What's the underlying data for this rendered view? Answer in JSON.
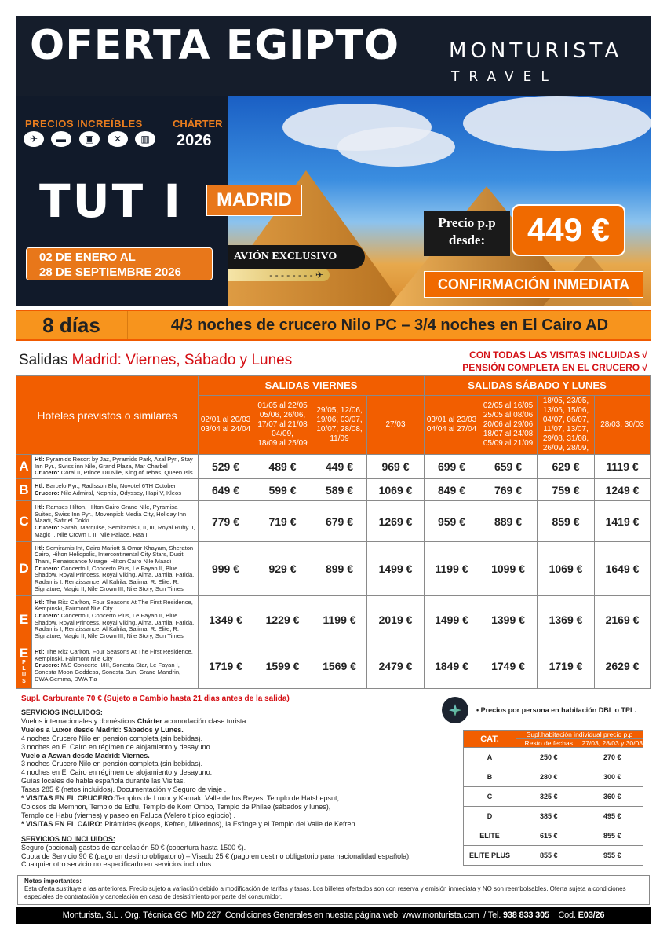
{
  "header": {
    "title": "OFERTA EGIPTO",
    "logo_main": "MONTURISTA",
    "logo_sub": "TRAVEL"
  },
  "hero": {
    "precios": "PRECIOS INCREÍBLES",
    "charter": "CHÁRTER",
    "year": "2026",
    "icons": [
      "plane-icon",
      "bed-icon",
      "bus-icon",
      "cutlery-icon",
      "luggage-icon"
    ],
    "program": "TUT I",
    "city": "MADRID",
    "dates_line1": "02 DE ENERO AL",
    "dates_line2": "28 DE SEPTIEMBRE 2026",
    "avion": "AVIÓN EXCLUSIVO",
    "price_label1": "Precio p.p",
    "price_label2": "desde:",
    "price": "449 €",
    "confirm": "CONFIRMACIÓN INMEDIATA"
  },
  "band": {
    "days": "8 días",
    "desc": "4/3 noches de crucero Nilo PC – 3/4 noches en El Cairo AD"
  },
  "salidas": {
    "prefix": "Salidas",
    "rest": "Madrid: Viernes, Sábado y Lunes",
    "incl1": "CON TODAS LAS VISITAS INCLUIDAS √",
    "incl2": "PENSIÓN COMPLETA EN EL CRUCERO √"
  },
  "table": {
    "hotels_header": "Hoteles previstos o similares",
    "group1": "SALIDAS VIERNES",
    "group2": "SALIDAS SÁBADO Y LUNES",
    "columns": [
      "02/01 al 20/03\n03/04 al 24/04",
      "01/05 al 22/05\n05/06, 26/06,\n17/07 al 21/08\n04/09,\n18/09 al 25/09",
      "29/05, 12/06,\n19/06, 03/07,\n10/07, 28/08,\n11/09",
      "27/03",
      "03/01 al 23/03\n04/04 al 27/04",
      "02/05 al 16/05\n25/05 al 08/06\n20/06 al 29/06\n18/07 al 24/08\n05/09 al 21/09",
      "18/05, 23/05,\n13/06, 15/06,\n04/07, 06/07,\n11/07, 13/07,\n29/08, 31/08,\n26/09, 28/09,",
      "28/03, 30/03"
    ],
    "rows": [
      {
        "cat": "A",
        "sub": "",
        "htl": "Pyramids Resort by Jaz, Pyramids Park, Azal Pyr., Stay Inn Pyr., Swiss inn Nile, Grand Plaza, Mar Charbel",
        "crucero": "Coral II, Prince Du Nile, King of Tebas, Queen Isis",
        "prices": [
          "529 €",
          "489 €",
          "449 €",
          "969 €",
          "699 €",
          "659 €",
          "629 €",
          "1119 €"
        ]
      },
      {
        "cat": "B",
        "sub": "",
        "htl": "Barcelo Pyr., Radisson Blu, Novotel 6TH October",
        "crucero": "Nile Admiral, Nephtis, Odyssey, Hapi V,  Kleos",
        "prices": [
          "649 €",
          "599 €",
          "589 €",
          "1069 €",
          "849 €",
          "769 €",
          "759 €",
          "1249 €"
        ]
      },
      {
        "cat": "C",
        "sub": "",
        "htl": "Ramses Hilton, Hilton Cairo Grand Nile, Pyramisa Suites, Swiss Inn Pyr., Movenpick Media City, Holiday Inn Maadi, Safir el Dokki",
        "crucero": "Sarah, Marquise, Semiramis I, II, III, Royal Ruby II, Magic I, Nile Crown I, II, Nile Palace, Raa I",
        "prices": [
          "779 €",
          "719 €",
          "679 €",
          "1269 €",
          "959 €",
          "889 €",
          "859 €",
          "1419 €"
        ]
      },
      {
        "cat": "D",
        "sub": "",
        "htl": "Semiramis Int, Cairo Mariott & Omar Khayam, Sheraton Cairo, Hilton Heliopolis, Intercontinental City Stars, Dusit Thani, Renaissance Mirage, Hilton Cairo Nile Maadi",
        "crucero": "Concerto I, Concerto Plus, Le Fayan II, Blue Shadow, Royal Princess, Royal Viking, Alma, Jamila, Farida, Radamis I, Renaissance, Al Kahila, Salima, R. Elite, R. Signature, Magic II, Nile Crown III, Nile Story, Sun Times",
        "prices": [
          "999 €",
          "929 €",
          "899 €",
          "1499 €",
          "1199 €",
          "1099 €",
          "1069 €",
          "1649 €"
        ]
      },
      {
        "cat": "E",
        "sub": "",
        "htl": "The Ritz Carlton, Four Seasons At The First Residence, Kempinski, Fairmont Nile City",
        "crucero": "Concerto I, Concerto Plus, Le Fayan II, Blue Shadow, Royal Princess, Royal Viking, Alma, Jamila, Farida, Radamis I, Renaissance, Al Kahila, Salima, R. Elite, R. Signature, Magic II, Nile Crown III, Nile Story, Sun Times",
        "prices": [
          "1349 €",
          "1229 €",
          "1199 €",
          "2019 €",
          "1499 €",
          "1399 €",
          "1369 €",
          "2169 €"
        ]
      },
      {
        "cat": "E",
        "sub": "PLUS",
        "htl": "The Ritz Carlton, Four Seasons At The First Residence, Kempinski, Fairmont Nile City",
        "crucero": "M/S Concerto II/III, Sonesta Star, Le Fayan I, Sonesta Moon Goddess, Sonesta Sun, Grand Mandrin, DWA Gemma, DWA Tia",
        "prices": [
          "1719 €",
          "1599 €",
          "1569 €",
          "2479 €",
          "1849 €",
          "1749 €",
          "1719 €",
          "2629 €"
        ]
      }
    ],
    "htl_label": "Htl:",
    "crucero_label": "Crucero:"
  },
  "info": {
    "carburante": "Supl. Carburante 70 € (Sujeto a Cambio hasta 21 dias antes de la salida)",
    "incl_title": "SERVICIOS INCLUIDOS:",
    "incl": [
      {
        "t": "Vuelos internacionales y domésticos ",
        "b": "Chárter",
        "t2": " acomodación clase turista."
      },
      {
        "b": "Vuelos a Luxor desde Madrid: Sábados y Lunes."
      },
      {
        "t": "4 noches Crucero Nilo en pensión completa (sin bebidas)."
      },
      {
        "t": "3 noches en El Cairo en régimen de alojamiento y desayuno."
      },
      {
        "b": "Vuelo a Aswan desde Madrid: Viernes."
      },
      {
        "t": "3 noches Crucero Nilo en pensión completa (sin bebidas)."
      },
      {
        "t": "4 noches en El Cairo en régimen de alojamiento y desayuno."
      },
      {
        "t": "Guías locales de habla española durante las Visitas."
      },
      {
        "t": "Tasas 285 € (netos incluidos). Documentación y Seguro de viaje ."
      },
      {
        "b": "* VISITAS EN EL CRUCERO:",
        "t2": "Templos de Luxor y Karnak, Valle de los Reyes, Templo de Hatshepsut,"
      },
      {
        "t": "Colosos de Memnon, Templo de Edfu, Templo de Kom Ombo, Templo de Philae (sábados y lunes),"
      },
      {
        "t": "Templo de Habu (viernes) y paseo en Faluca (Velero típico egipcio) ."
      },
      {
        "b": "* VISITAS EN EL CAIRO:",
        "t2": " Pirámides (Keops, Kefren, Mikerinos), la Esfinge y el Templo del Valle de Kefren."
      }
    ],
    "noincl_title": "SERVICIOS NO INCLUIDOS:",
    "noincl": [
      "Seguro (opcional) gastos de cancelación 50 € (cobertura hasta 1500 €).",
      "Cuota de Servicio 90 € (pago en destino obligatorio) – Visado 25 € (pago en destino obligatorio para nacionalidad española).",
      "Cualquier otro servicio no especificado en servicios incluidos."
    ]
  },
  "supplement": {
    "note": "• Precios por persona en habitación DBL o TPL.",
    "cat_header": "CAT.",
    "title": "Supl.habitación individual precio p.p",
    "col1": "Resto de fechas",
    "col2": "27/03, 28/03 y 30/03",
    "rows": [
      [
        "A",
        "250 €",
        "270 €"
      ],
      [
        "B",
        "280 €",
        "300 €"
      ],
      [
        "C",
        "325 €",
        "360 €"
      ],
      [
        "D",
        "385 €",
        "495 €"
      ],
      [
        "ELITE",
        "615 €",
        "855 €"
      ],
      [
        "ELITE PLUS",
        "855 €",
        "955 €"
      ]
    ]
  },
  "notes": {
    "title": "Notas importantes:",
    "text": "Esta oferta sustituye a las anteriores. Precio sujeto a variación debido a modificación de tarifas y tasas. Los billetes ofertados son con reserva y emisión inmediata y NO son reembolsables. Oferta sujeta a condiciones especiales de contratación y cancelación en caso de desistimiento por parte del consumidor."
  },
  "footer": {
    "text": "Monturista, S.L . Org. Técnica GC  MD 227  Condiciones Generales en nuestra página web: www.monturista.com  / Tel. ",
    "tel": "938 833 305",
    "cod_label": "    Cod. ",
    "cod": "E03/26"
  }
}
